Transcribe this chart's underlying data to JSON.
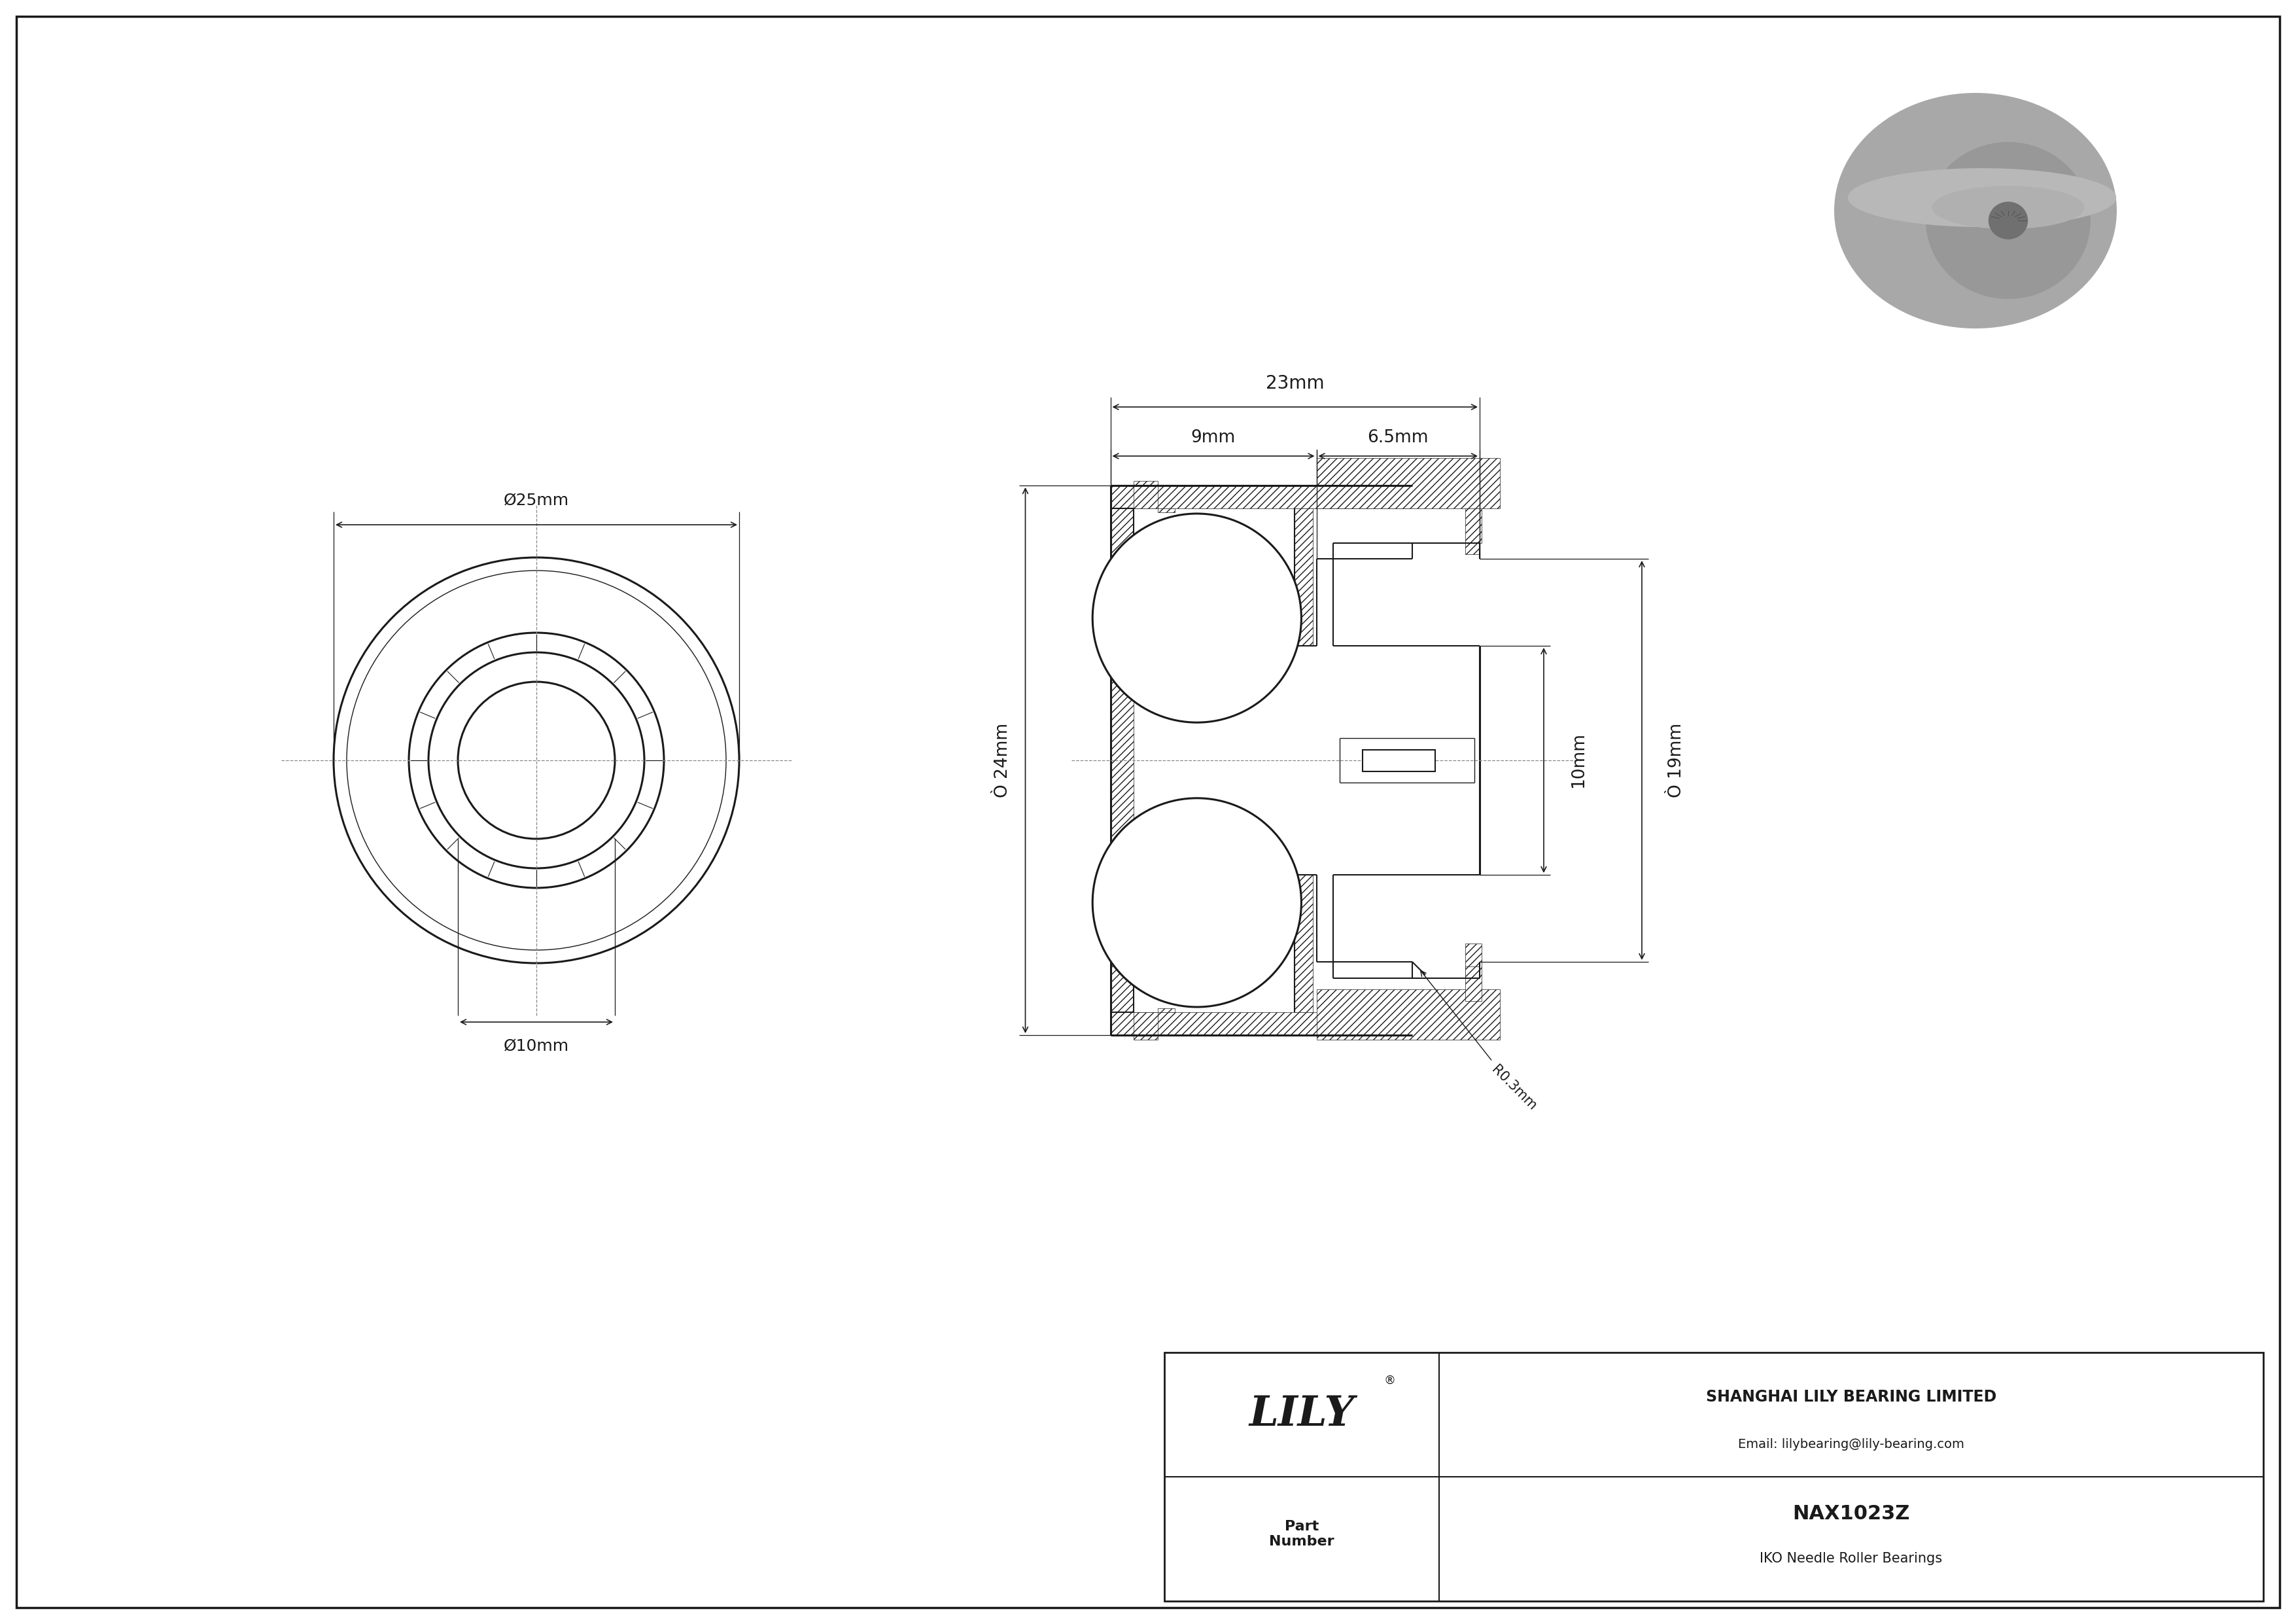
{
  "bg_color": "#ffffff",
  "line_color": "#1a1a1a",
  "cl_color": "#888888",
  "hatch_color": "#555555",
  "company_name": "SHANGHAI LILY BEARING LIMITED",
  "email": "Email: lilybearing@lily-bearing.com",
  "part_number": "NAX1023Z",
  "bearing_type": "IKO Needle Roller Bearings",
  "part_label": "Part\nNumber",
  "dim_OD": "Ø25mm",
  "dim_ID": "Ø10mm",
  "dim_height": "Ò 24mm",
  "dim_total_width": "23mm",
  "dim_left_width": "9mm",
  "dim_right_width": "6.5mm",
  "dim_small_height": "10mm",
  "dim_small_OD": "Ò 19mm",
  "dim_radius": "R0.3mm"
}
